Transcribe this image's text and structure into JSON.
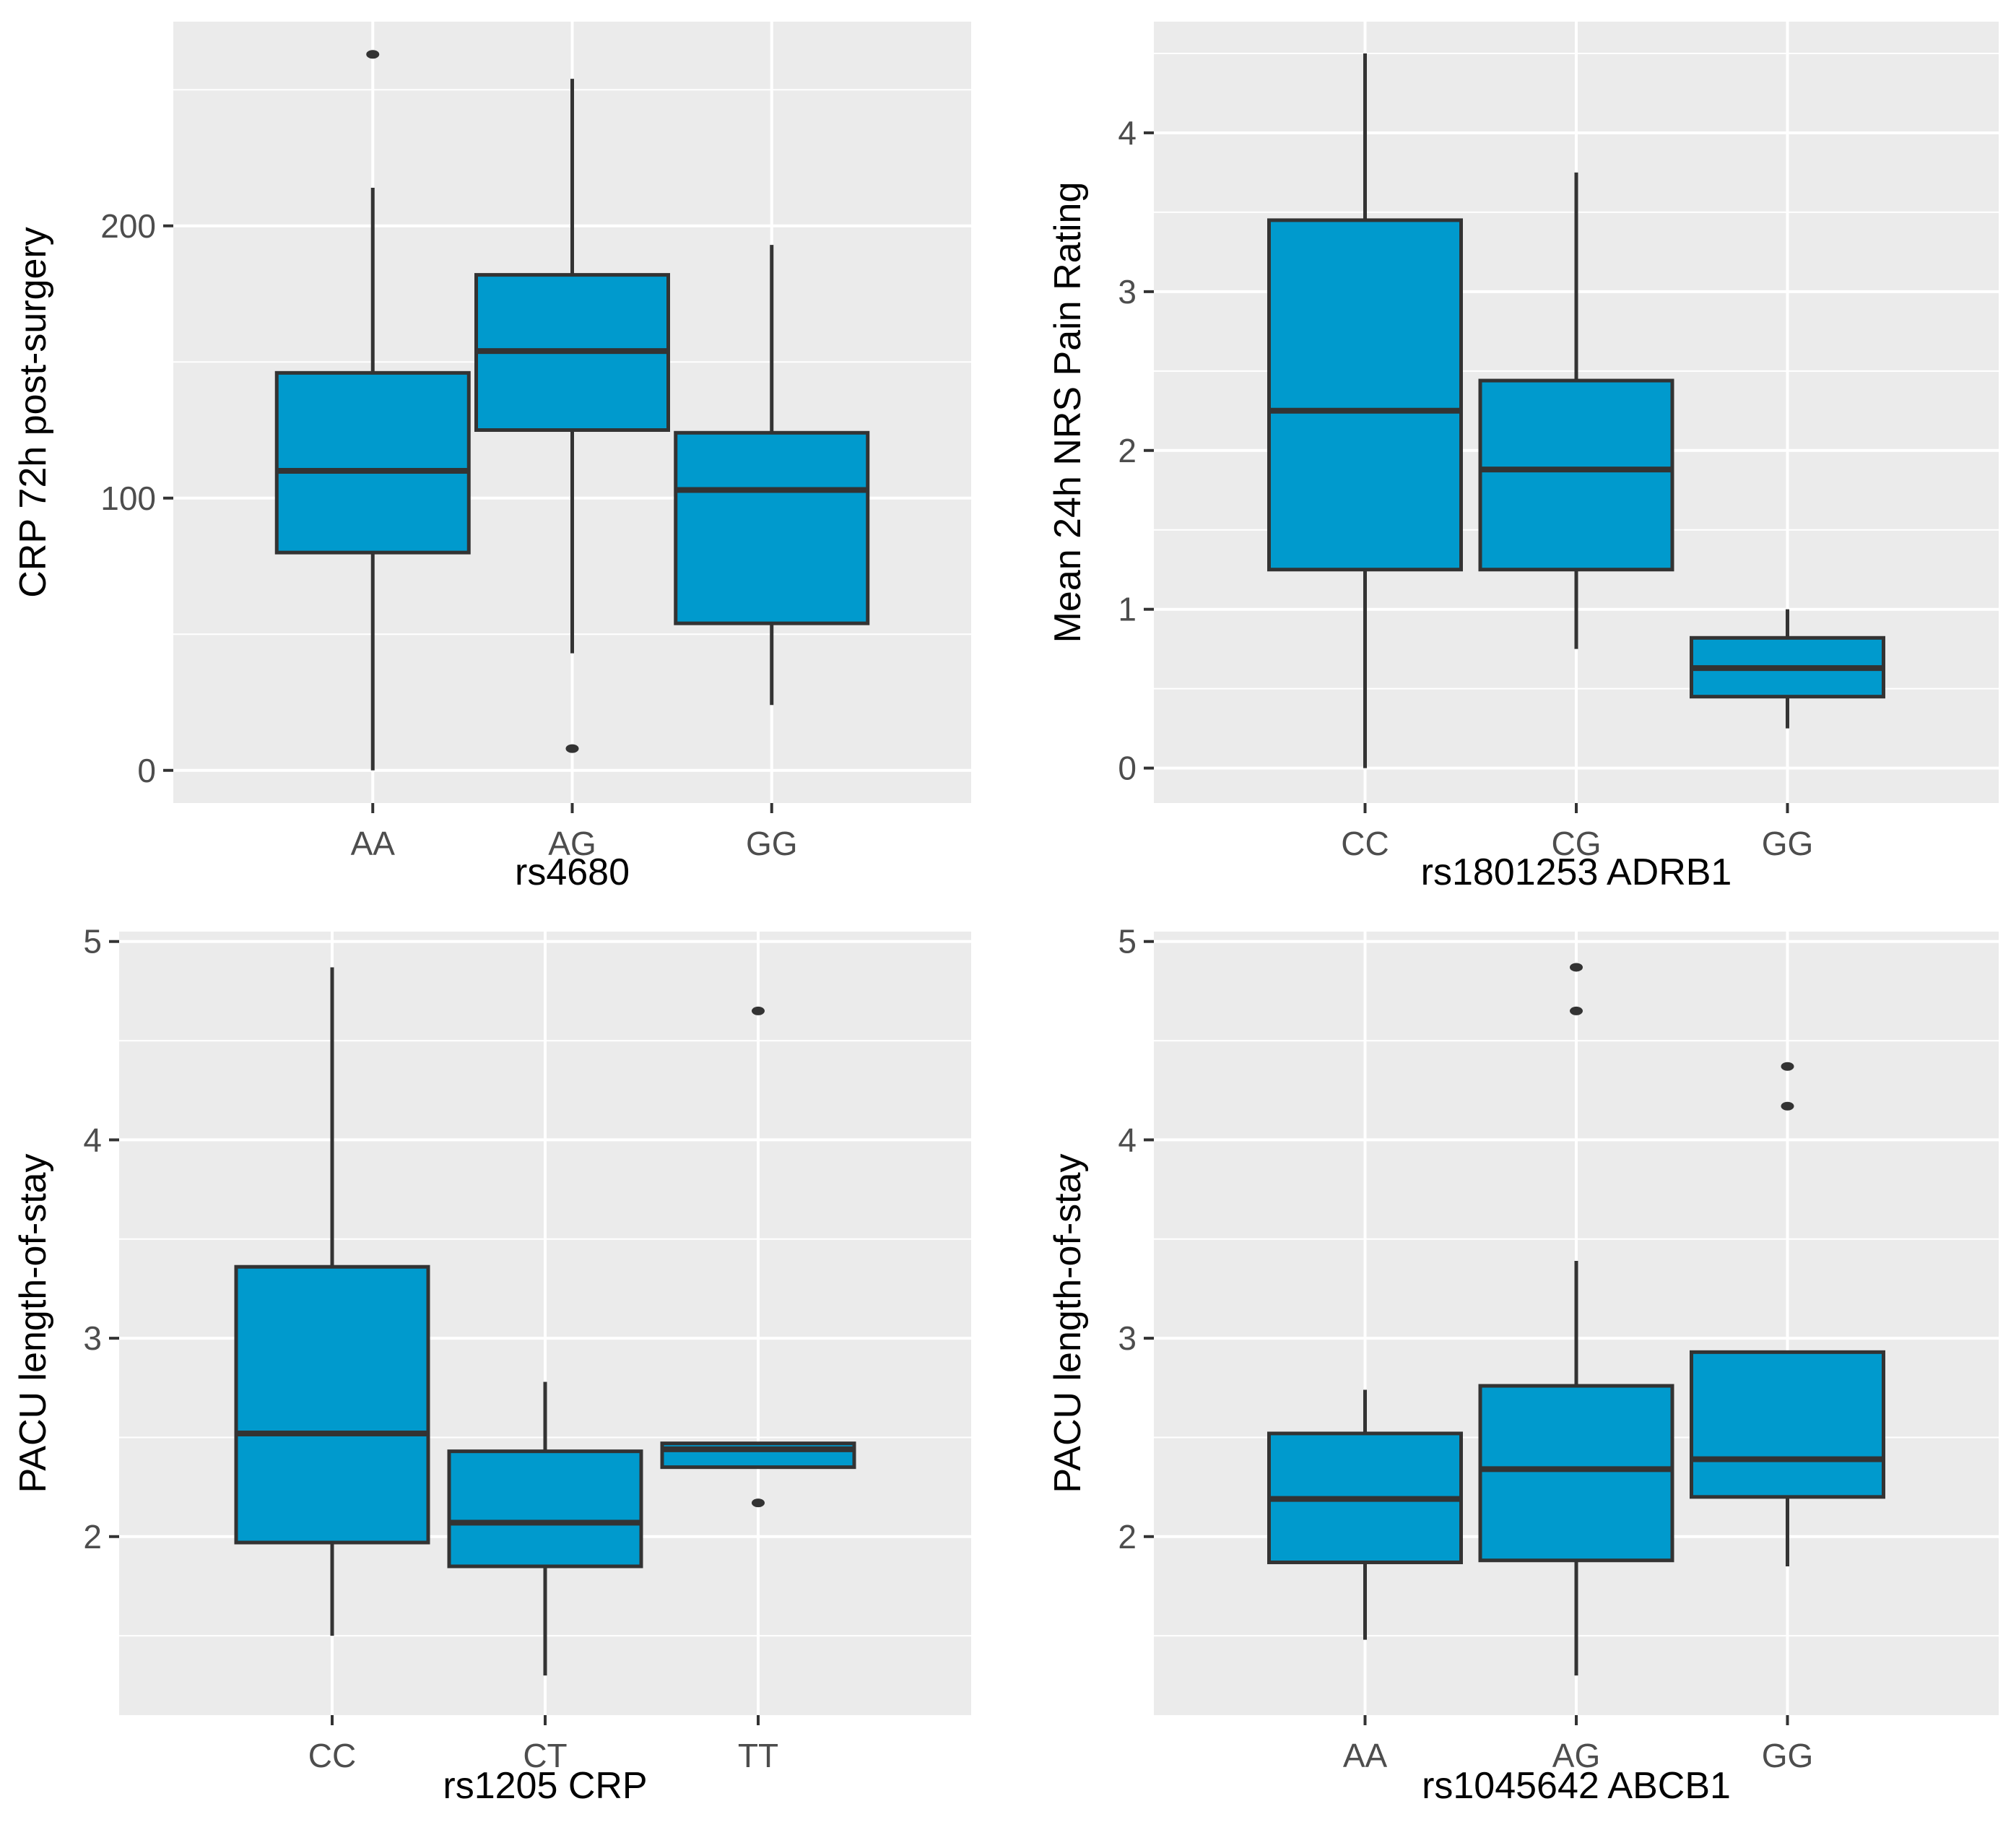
{
  "colors": {
    "panel_bg": "#ebebeb",
    "grid": "#ffffff",
    "box_fill": "#009ACD",
    "box_stroke": "#333333",
    "tick_text": "#4d4d4d",
    "title_text": "#000000"
  },
  "chart_data": [
    {
      "type": "boxplot",
      "title": "",
      "xlabel": "rs4680",
      "ylabel": "CRP 72h post-surgery",
      "categories": [
        "AA",
        "AG",
        "GG"
      ],
      "ylim": [
        -12,
        275
      ],
      "yticks": [
        0,
        100,
        200
      ],
      "yticklabels": [
        "0",
        "100",
        "200"
      ],
      "grid": true,
      "boxes": [
        {
          "category": "AA",
          "whisker_low": 0,
          "q1": 80,
          "median": 110,
          "q3": 146,
          "whisker_high": 214,
          "outliers": [
            263
          ]
        },
        {
          "category": "AG",
          "whisker_low": 43,
          "q1": 125,
          "median": 154,
          "q3": 182,
          "whisker_high": 254,
          "outliers": [
            8
          ]
        },
        {
          "category": "GG",
          "whisker_low": 24,
          "q1": 54,
          "median": 103,
          "q3": 124,
          "whisker_high": 193,
          "outliers": []
        }
      ]
    },
    {
      "type": "boxplot",
      "title": "",
      "xlabel": "rs1801253 ADRB1",
      "ylabel": "Mean 24h NRS Pain Rating",
      "categories": [
        "CC",
        "CG",
        "GG"
      ],
      "ylim": [
        -0.22,
        4.7
      ],
      "yticks": [
        0,
        1,
        2,
        3,
        4
      ],
      "yticklabels": [
        "0",
        "1",
        "2",
        "3",
        "4"
      ],
      "grid": true,
      "boxes": [
        {
          "category": "CC",
          "whisker_low": 0,
          "q1": 1.25,
          "median": 2.25,
          "q3": 3.45,
          "whisker_high": 4.5,
          "outliers": []
        },
        {
          "category": "CG",
          "whisker_low": 0.75,
          "q1": 1.25,
          "median": 1.88,
          "q3": 2.44,
          "whisker_high": 3.75,
          "outliers": []
        },
        {
          "category": "GG",
          "whisker_low": 0.25,
          "q1": 0.45,
          "median": 0.63,
          "q3": 0.82,
          "whisker_high": 1.0,
          "outliers": []
        }
      ]
    },
    {
      "type": "boxplot",
      "title": "",
      "xlabel": "rs1205 CRP",
      "ylabel": "PACU length-of-stay",
      "categories": [
        "CC",
        "CT",
        "TT"
      ],
      "ylim": [
        1.1,
        5.05
      ],
      "yticks": [
        2,
        3,
        4,
        5
      ],
      "yticklabels": [
        "2",
        "3",
        "4",
        "5"
      ],
      "grid": true,
      "boxes": [
        {
          "category": "CC",
          "whisker_low": 1.5,
          "q1": 1.97,
          "median": 2.52,
          "q3": 3.36,
          "whisker_high": 4.87,
          "outliers": []
        },
        {
          "category": "CT",
          "whisker_low": 1.3,
          "q1": 1.85,
          "median": 2.07,
          "q3": 2.43,
          "whisker_high": 2.78,
          "outliers": []
        },
        {
          "category": "TT",
          "whisker_low": 2.35,
          "q1": 2.35,
          "median": 2.44,
          "q3": 2.47,
          "whisker_high": 2.47,
          "outliers": [
            4.65,
            2.17
          ]
        }
      ]
    },
    {
      "type": "boxplot",
      "title": "",
      "xlabel": "rs1045642 ABCB1",
      "ylabel": "PACU length-of-stay",
      "categories": [
        "AA",
        "AG",
        "GG"
      ],
      "ylim": [
        1.1,
        5.05
      ],
      "yticks": [
        2,
        3,
        4,
        5
      ],
      "yticklabels": [
        "2",
        "3",
        "4",
        "5"
      ],
      "grid": true,
      "boxes": [
        {
          "category": "AA",
          "whisker_low": 1.48,
          "q1": 1.87,
          "median": 2.19,
          "q3": 2.52,
          "whisker_high": 2.74,
          "outliers": []
        },
        {
          "category": "AG",
          "whisker_low": 1.3,
          "q1": 1.88,
          "median": 2.34,
          "q3": 2.76,
          "whisker_high": 3.39,
          "outliers": [
            4.87,
            4.65
          ]
        },
        {
          "category": "GG",
          "whisker_low": 1.85,
          "q1": 2.2,
          "median": 2.39,
          "q3": 2.93,
          "whisker_high": 2.93,
          "outliers": [
            4.37,
            4.17
          ]
        }
      ]
    }
  ]
}
